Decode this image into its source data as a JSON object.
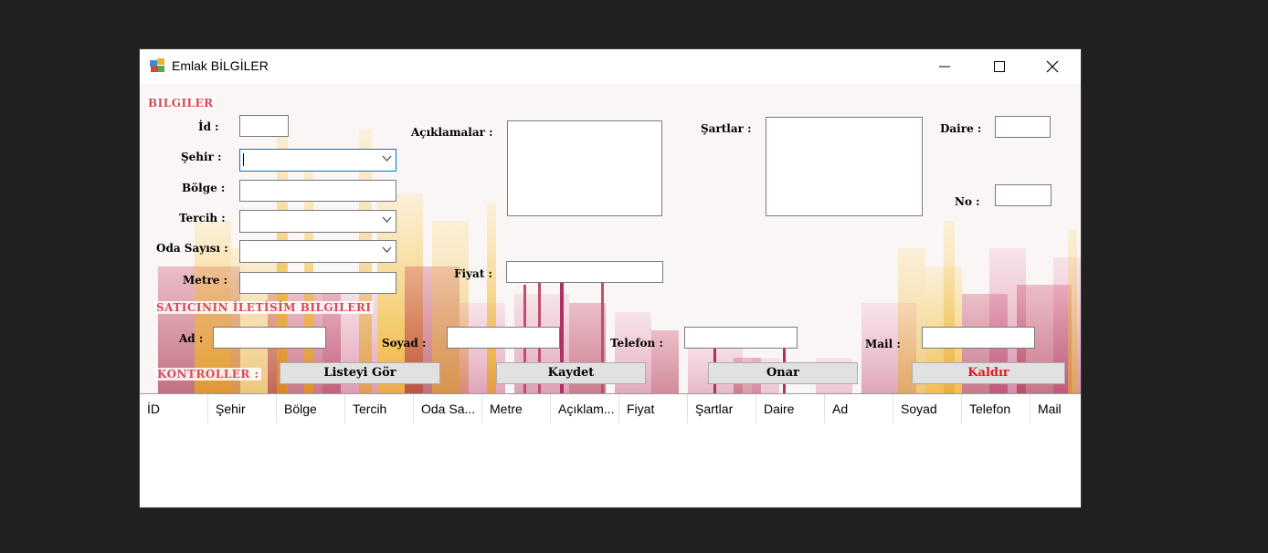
{
  "window": {
    "title": "Emlak BİLGİLER"
  },
  "sections": {
    "bilgiler": "BILGILER",
    "satici": "SATICININ İLETİSİM BILGILERI",
    "kontroller": "KONTROLLER :"
  },
  "labels": {
    "id": "İd :",
    "sehir": "Şehir :",
    "bolge": "Bölge :",
    "tercih": "Tercih :",
    "oda_sayisi": "Oda Sayısı :",
    "metre": "Metre :",
    "aciklamalar": "Açıklamalar :",
    "fiyat": "Fiyat :",
    "sartlar": "Şartlar :",
    "daire": "Daire :",
    "no": "No :",
    "ad": "Ad :",
    "soyad": "Soyad :",
    "telefon": "Telefon :",
    "mail": "Mail :"
  },
  "fields": {
    "id": "",
    "sehir": "",
    "bolge": "",
    "tercih": "",
    "oda_sayisi": "",
    "metre": "",
    "aciklamalar": "",
    "fiyat": "",
    "sartlar": "",
    "daire": "",
    "no": "",
    "ad": "",
    "soyad": "",
    "telefon": "",
    "mail": ""
  },
  "buttons": {
    "listeyi_gor": "Listeyi Gör",
    "kaydet": "Kaydet",
    "onar": "Onar",
    "kaldir": "Kaldır"
  },
  "grid": {
    "columns": [
      "İD",
      "Şehir",
      "Bölge",
      "Tercih",
      "Oda Sa...",
      "Metre",
      "Açıklam...",
      "Fiyat",
      "Şartlar",
      "Daire",
      "Ad",
      "Soyad",
      "Telefon",
      "Mail"
    ],
    "rows": []
  },
  "colors": {
    "section_label": "#d8485a",
    "delete_button_text": "#e0161e",
    "focus_border": "#0078d7"
  }
}
